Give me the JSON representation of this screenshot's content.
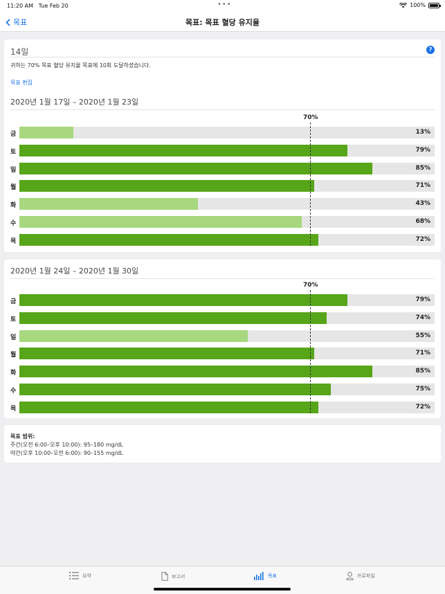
{
  "status_bar": {
    "time": "11:20 AM",
    "date": "Tue Feb 20",
    "battery": "100%"
  },
  "nav": {
    "back_label": "목표",
    "title": "목표: 목표 혈당 유지율"
  },
  "summary": {
    "days_label": "14일",
    "achievement_text": "귀하는 70% 목표 혈당 유지율 목표에 10회 도달하셨습니다.",
    "edit_link": "목표 편집"
  },
  "colors": {
    "bar_met": "#57a519",
    "bar_unmet": "#a7d77f",
    "track": "#e6e6e6",
    "accent": "#1a73e8"
  },
  "chart_data": [
    {
      "type": "bar",
      "title": "2020년 1월 17일 – 2020년 1월 23일",
      "target_label": "70%",
      "target": 70,
      "xlim": [
        0,
        100
      ],
      "categories": [
        "금",
        "토",
        "일",
        "월",
        "화",
        "수",
        "목"
      ],
      "values": [
        13,
        79,
        85,
        71,
        43,
        68,
        72
      ],
      "value_labels": [
        "13%",
        "79%",
        "85%",
        "71%",
        "43%",
        "68%",
        "72%"
      ]
    },
    {
      "type": "bar",
      "title": "2020년 1월 24일 – 2020년 1월 30일",
      "target_label": "70%",
      "target": 70,
      "xlim": [
        0,
        100
      ],
      "categories": [
        "금",
        "토",
        "일",
        "월",
        "화",
        "수",
        "목"
      ],
      "values": [
        79,
        74,
        55,
        71,
        85,
        75,
        72
      ],
      "value_labels": [
        "79%",
        "74%",
        "55%",
        "71%",
        "85%",
        "75%",
        "72%"
      ]
    }
  ],
  "target_range": {
    "title": "목표 범위:",
    "day": "주간(오전 6:00–오후 10:00): 95–180 mg/dL",
    "night": "야간(오후 10:00–오전 6:00): 90–155 mg/dL"
  },
  "tabs": [
    {
      "label": "요약",
      "icon": "list-icon",
      "active": false
    },
    {
      "label": "보고서",
      "icon": "document-icon",
      "active": false
    },
    {
      "label": "목표",
      "icon": "bar-chart-icon",
      "active": true
    },
    {
      "label": "프로파일",
      "icon": "person-icon",
      "active": false
    }
  ]
}
